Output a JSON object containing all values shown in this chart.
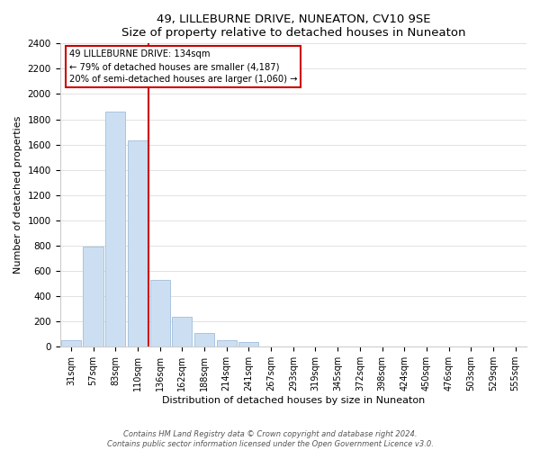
{
  "title": "49, LILLEBURNE DRIVE, NUNEATON, CV10 9SE",
  "subtitle": "Size of property relative to detached houses in Nuneaton",
  "xlabel": "Distribution of detached houses by size in Nuneaton",
  "ylabel": "Number of detached properties",
  "bar_labels": [
    "31sqm",
    "57sqm",
    "83sqm",
    "110sqm",
    "136sqm",
    "162sqm",
    "188sqm",
    "214sqm",
    "241sqm",
    "267sqm",
    "293sqm",
    "319sqm",
    "345sqm",
    "372sqm",
    "398sqm",
    "424sqm",
    "450sqm",
    "476sqm",
    "503sqm",
    "529sqm",
    "555sqm"
  ],
  "bar_values": [
    55,
    795,
    1860,
    1635,
    530,
    235,
    110,
    55,
    35,
    0,
    0,
    0,
    0,
    0,
    0,
    0,
    0,
    0,
    0,
    0,
    0
  ],
  "bar_color": "#ccdff2",
  "bar_edge_color": "#aac4e0",
  "reference_line_color": "#cc0000",
  "annotation_text": "49 LILLEBURNE DRIVE: 134sqm\n← 79% of detached houses are smaller (4,187)\n20% of semi-detached houses are larger (1,060) →",
  "ylim": [
    0,
    2400
  ],
  "yticks": [
    0,
    200,
    400,
    600,
    800,
    1000,
    1200,
    1400,
    1600,
    1800,
    2000,
    2200,
    2400
  ],
  "footer": "Contains HM Land Registry data © Crown copyright and database right 2024.\nContains public sector information licensed under the Open Government Licence v3.0.",
  "figsize": [
    6.0,
    5.0
  ],
  "dpi": 100
}
